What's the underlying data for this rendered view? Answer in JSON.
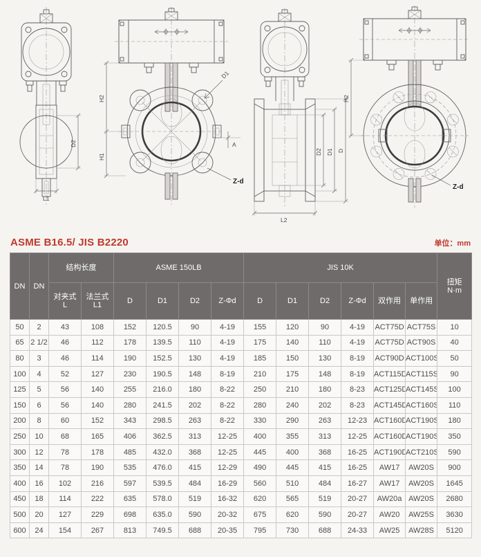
{
  "title": "ASME B16.5/ JIS B2220",
  "unit_label": "单位：mm",
  "drawings": {
    "wafer_side": {
      "dim_d2": "D2",
      "dim_l1": "L1"
    },
    "wafer_front": {
      "dim_h2": "H2",
      "dim_h1": "H1",
      "dim_d1": "D1",
      "dim_a": "A",
      "dim_zd": "Z-d"
    },
    "flanged_side": {
      "dim_d2": "D2",
      "dim_d1": "D1",
      "dim_d": "D",
      "dim_l2": "L2"
    },
    "flanged_front": {
      "dim_h2": "H2",
      "dim_zd": "Z-d"
    }
  },
  "table": {
    "header": {
      "dn_mm": "DN",
      "dn_in": "DN",
      "length_group": "结构长度",
      "wafer_line1": "对夹式",
      "wafer_line2": "L",
      "flange_line1": "法兰式",
      "flange_line2": "L1",
      "asme_group": "ASME 150LB",
      "jis_group": "JIS 10K",
      "a_d": "D",
      "a_d1": "D1",
      "a_d2": "D2",
      "a_zd": "Z-Φd",
      "j_d": "D",
      "j_d1": "D1",
      "j_d2": "D2",
      "j_zd": "Z-Φd",
      "double_acting": "双作用",
      "single_acting": "单作用",
      "torque_line1": "扭矩",
      "torque_line2": "N·m"
    },
    "rows": [
      [
        "50",
        "2",
        "43",
        "108",
        "152",
        "120.5",
        "90",
        "4-19",
        "155",
        "120",
        "90",
        "4-19",
        "ACT75D",
        "ACT75S",
        "10"
      ],
      [
        "65",
        "2 1/2",
        "46",
        "112",
        "178",
        "139.5",
        "110",
        "4-19",
        "175",
        "140",
        "110",
        "4-19",
        "ACT75D",
        "ACT90S",
        "40"
      ],
      [
        "80",
        "3",
        "46",
        "114",
        "190",
        "152.5",
        "130",
        "4-19",
        "185",
        "150",
        "130",
        "8-19",
        "ACT90D",
        "ACT100S",
        "50"
      ],
      [
        "100",
        "4",
        "52",
        "127",
        "230",
        "190.5",
        "148",
        "8-19",
        "210",
        "175",
        "148",
        "8-19",
        "ACT115D",
        "ACT115S",
        "90"
      ],
      [
        "125",
        "5",
        "56",
        "140",
        "255",
        "216.0",
        "180",
        "8-22",
        "250",
        "210",
        "180",
        "8-23",
        "ACT125D",
        "ACT145S",
        "100"
      ],
      [
        "150",
        "6",
        "56",
        "140",
        "280",
        "241.5",
        "202",
        "8-22",
        "280",
        "240",
        "202",
        "8-23",
        "ACT145D",
        "ACT160S",
        "110"
      ],
      [
        "200",
        "8",
        "60",
        "152",
        "343",
        "298.5",
        "263",
        "8-22",
        "330",
        "290",
        "263",
        "12-23",
        "ACT160D",
        "ACT190S",
        "180"
      ],
      [
        "250",
        "10",
        "68",
        "165",
        "406",
        "362.5",
        "313",
        "12-25",
        "400",
        "355",
        "313",
        "12-25",
        "ACT160D",
        "ACT190S",
        "350"
      ],
      [
        "300",
        "12",
        "78",
        "178",
        "485",
        "432.0",
        "368",
        "12-25",
        "445",
        "400",
        "368",
        "16-25",
        "ACT190D",
        "ACT210S",
        "590"
      ],
      [
        "350",
        "14",
        "78",
        "190",
        "535",
        "476.0",
        "415",
        "12-29",
        "490",
        "445",
        "415",
        "16-25",
        "AW17",
        "AW20S",
        "900"
      ],
      [
        "400",
        "16",
        "102",
        "216",
        "597",
        "539.5",
        "484",
        "16-29",
        "560",
        "510",
        "484",
        "16-27",
        "AW17",
        "AW20S",
        "1645"
      ],
      [
        "450",
        "18",
        "114",
        "222",
        "635",
        "578.0",
        "519",
        "16-32",
        "620",
        "565",
        "519",
        "20-27",
        "AW20a",
        "AW20S",
        "2680"
      ],
      [
        "500",
        "20",
        "127",
        "229",
        "698",
        "635.0",
        "590",
        "20-32",
        "675",
        "620",
        "590",
        "20-27",
        "AW20",
        "AW25S",
        "3630"
      ],
      [
        "600",
        "24",
        "154",
        "267",
        "813",
        "749.5",
        "688",
        "20-35",
        "795",
        "730",
        "688",
        "24-33",
        "AW25",
        "AW28S",
        "5120"
      ]
    ]
  }
}
